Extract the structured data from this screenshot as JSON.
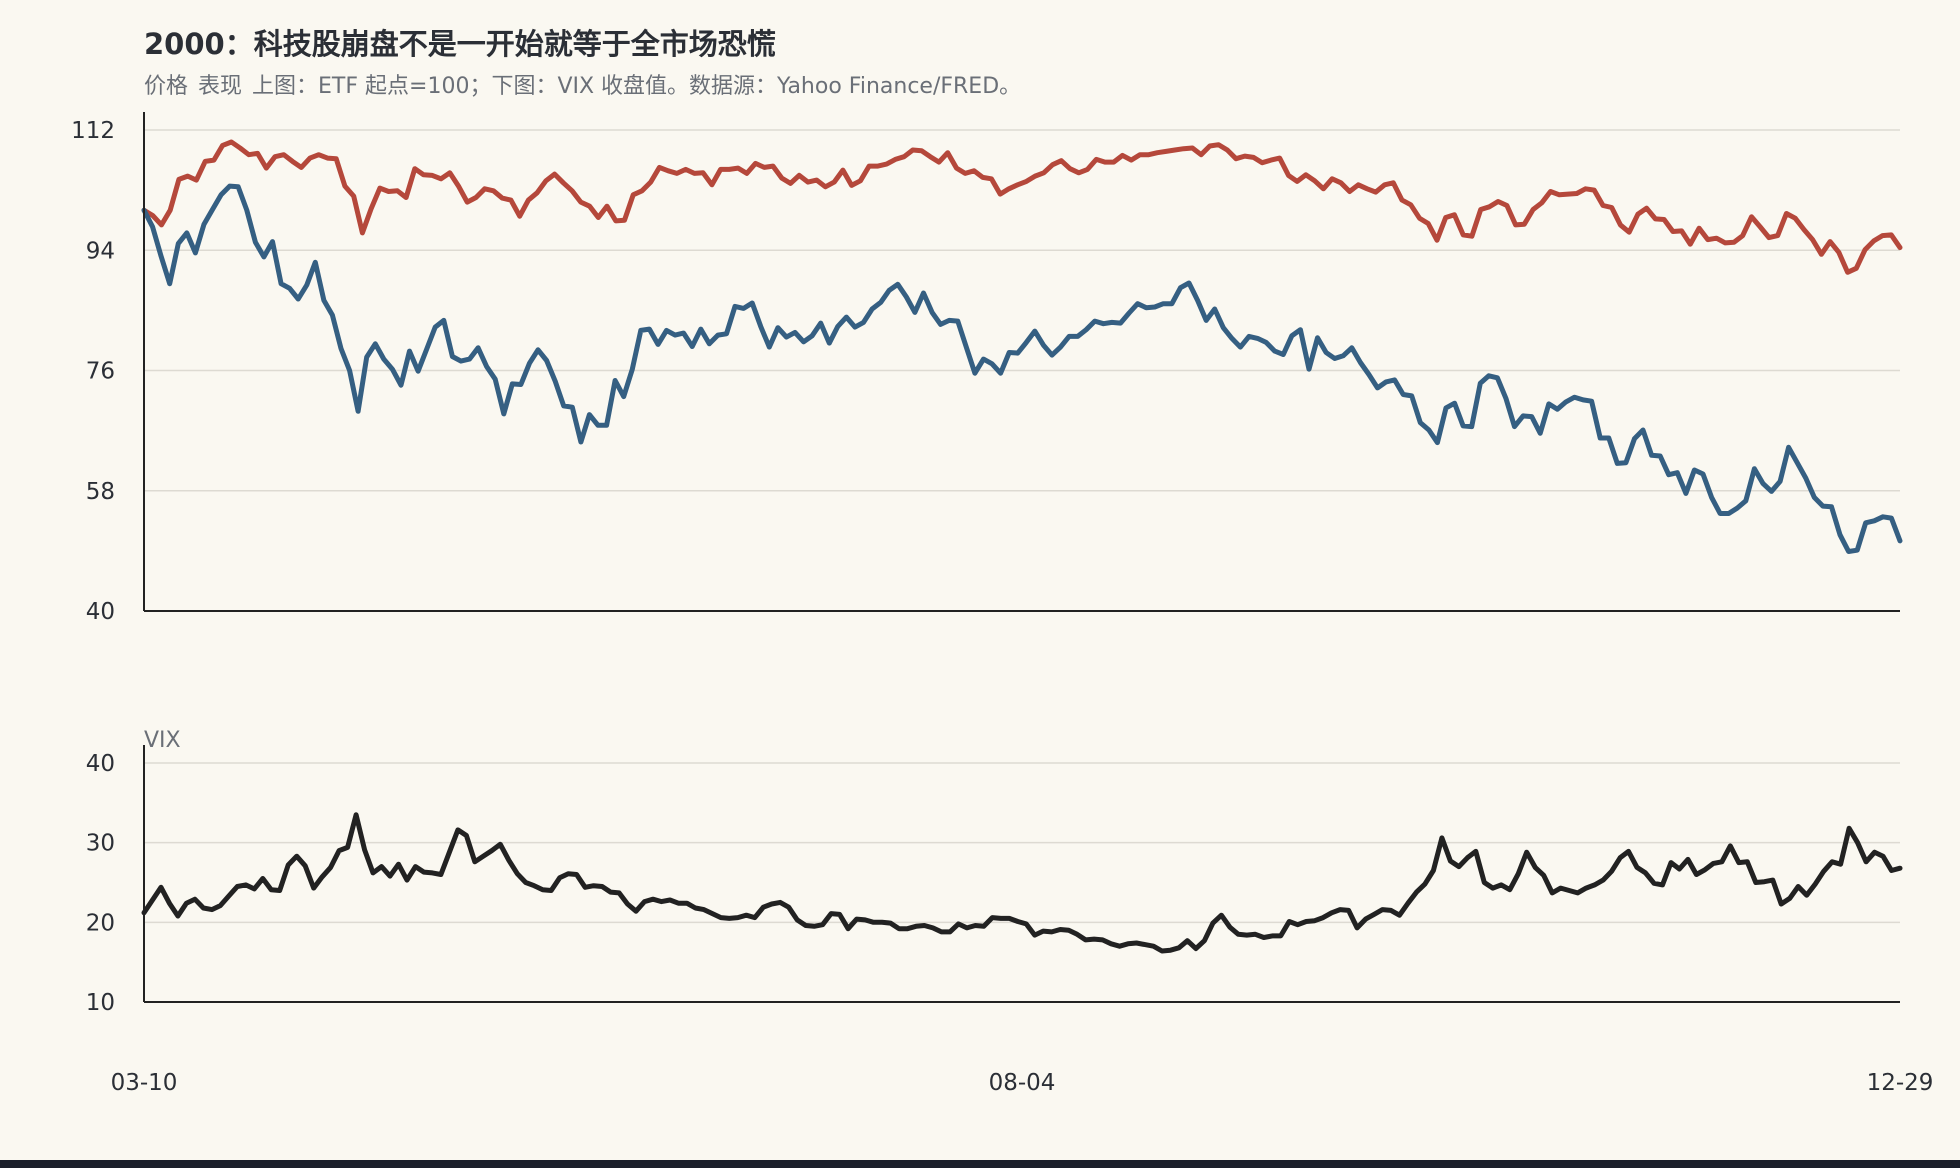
{
  "title": "2000：科技股崩盘不是一开始就等于全市场恐慌",
  "subtitle": "上图：ETF 起点=100；下图：VIX 收盘值。数据源：Yahoo Finance/FRED。",
  "legend_labels": [
    "价格",
    "表现"
  ],
  "colors": {
    "series_red": "#b5483b",
    "series_blue": "#355f82",
    "series_vix": "#222222",
    "grid": "#dddad2",
    "axis": "#222222"
  },
  "chart_data": [
    {
      "type": "line",
      "panel": "top",
      "ylim": [
        40,
        112
      ],
      "yticks": [
        "112",
        "94",
        "76",
        "58",
        "40"
      ],
      "xticks": [
        "03-10",
        "08-04",
        "12-29"
      ],
      "grid": true,
      "series": [
        {
          "color": "#b5483b",
          "values": [
            100,
            99.2,
            97.8,
            100,
            104.6,
            105.1,
            104.5,
            107.3,
            107.5,
            109.7,
            110.2,
            109.3,
            108.3,
            108.5,
            106.3,
            108,
            108.3,
            107.3,
            106.4,
            107.8,
            108.3,
            107.8,
            107.7,
            103.6,
            102.1,
            96.6,
            100.2,
            103.3,
            102.8,
            102.9,
            101.9,
            106.2,
            105.3,
            105.2,
            104.7,
            105.6,
            103.6,
            101.2,
            101.9,
            103.2,
            102.9,
            101.8,
            101.5,
            99.1,
            101.5,
            102.6,
            104.4,
            105.4,
            104.1,
            102.9,
            101.2,
            100.6,
            98.9,
            100.6,
            98.4,
            98.5,
            102.3,
            102.9,
            104.2,
            106.4,
            105.9,
            105.5,
            106.1,
            105.5,
            105.6,
            103.8,
            106.1,
            106.1,
            106.3,
            105.5,
            107,
            106.4,
            106.6,
            104.8,
            104,
            105.2,
            104.2,
            104.5,
            103.5,
            104.2,
            106,
            103.7,
            104.4,
            106.6,
            106.6,
            106.9,
            107.6,
            108,
            109,
            108.9,
            108,
            107.2,
            108.6,
            106.3,
            105.5,
            105.9,
            104.9,
            104.7,
            102.4,
            103.2,
            103.8,
            104.3,
            105.1,
            105.6,
            106.8,
            107.4,
            106.2,
            105.6,
            106.1,
            107.6,
            107.2,
            107.2,
            108.2,
            107.5,
            108.3,
            108.3,
            108.6,
            108.8,
            109,
            109.2,
            109.3,
            108.3,
            109.6,
            109.8,
            109,
            107.7,
            108.1,
            107.9,
            107.1,
            107.5,
            107.8,
            105.2,
            104.3,
            105.3,
            104.4,
            103.2,
            104.7,
            104.1,
            102.8,
            103.8,
            103.2,
            102.7,
            103.8,
            104.1,
            101.5,
            100.8,
            98.8,
            98,
            95.5,
            98.9,
            99.3,
            96.3,
            96.1,
            100.1,
            100.5,
            101.3,
            100.7,
            97.8,
            97.9,
            100.1,
            101.1,
            102.8,
            102.3,
            102.4,
            102.5,
            103.2,
            103,
            100.7,
            100.4,
            97.8,
            96.7,
            99.4,
            100.3,
            98.7,
            98.6,
            96.8,
            96.9,
            94.9,
            97.3,
            95.6,
            95.8,
            95.1,
            95.2,
            96.2,
            99,
            97.5,
            95.9,
            96.2,
            99.5,
            98.8,
            97.1,
            95.6,
            93.4,
            95.3,
            93.7,
            90.7,
            91.3,
            94.1,
            95.4,
            96.2,
            96.3,
            94.4
          ]
        },
        {
          "color": "#355f82",
          "values": [
            100,
            97.5,
            93.1,
            89,
            95,
            96.6,
            93.6,
            97.9,
            100.1,
            102.3,
            103.6,
            103.5,
            100,
            95.2,
            93,
            95.3,
            89,
            88.3,
            86.7,
            88.8,
            92.2,
            86.5,
            84.3,
            79.3,
            76,
            69.9,
            78,
            80,
            77.7,
            76.2,
            73.8,
            78.9,
            75.9,
            79.2,
            82.5,
            83.5,
            78.1,
            77.4,
            77.7,
            79.4,
            76.6,
            74.7,
            69.5,
            74,
            73.9,
            77.1,
            79.1,
            77.5,
            74.4,
            70.7,
            70.5,
            65.3,
            69.4,
            67.8,
            67.8,
            74.5,
            72.1,
            76.2,
            82,
            82.2,
            79.9,
            82,
            81.3,
            81.6,
            79.6,
            82.2,
            80,
            81.3,
            81.5,
            85.6,
            85.3,
            86.1,
            82.6,
            79.5,
            82.4,
            81,
            81.7,
            80.3,
            81.2,
            83.1,
            80.1,
            82.6,
            84,
            82.5,
            83.2,
            85.2,
            86.2,
            88,
            88.9,
            87,
            84.7,
            87.6,
            84.7,
            82.9,
            83.5,
            83.4,
            79.5,
            75.6,
            77.7,
            77,
            75.6,
            78.7,
            78.6,
            80.2,
            81.9,
            79.8,
            78.3,
            79.5,
            81.1,
            81.1,
            82.1,
            83.4,
            83,
            83.2,
            83.1,
            84.6,
            86,
            85.4,
            85.5,
            86,
            86,
            88.4,
            89.1,
            86.5,
            83.5,
            85.2,
            82.4,
            80.8,
            79.5,
            81.1,
            80.8,
            80.2,
            78.9,
            78.4,
            81.2,
            82.1,
            76.2,
            80.9,
            78.7,
            77.8,
            78.2,
            79.4,
            77.2,
            75.4,
            73.4,
            74.3,
            74.6,
            72.4,
            72.2,
            68.2,
            67.1,
            65.2,
            70.4,
            71.1,
            67.7,
            67.6,
            74.1,
            75.2,
            74.9,
            71.8,
            67.6,
            69.2,
            69.1,
            66.6,
            71,
            70.2,
            71.3,
            72,
            71.6,
            71.4,
            65.9,
            65.9,
            62.1,
            62.2,
            65.8,
            67.1,
            63.3,
            63.2,
            60.4,
            60.7,
            57.6,
            61.1,
            60.5,
            57,
            54.6,
            54.6,
            55.4,
            56.5,
            61.3,
            59.1,
            57.9,
            59.4,
            64.5,
            62.2,
            59.9,
            57,
            55.7,
            55.6,
            51.4,
            48.9,
            49.1,
            53.2,
            53.5,
            54.1,
            53.9,
            50.5
          ]
        }
      ]
    },
    {
      "type": "line",
      "panel": "bottom",
      "ylabel": "VIX",
      "ylim": [
        10,
        40
      ],
      "yticks": [
        "40",
        "30",
        "20",
        "10"
      ],
      "grid": true,
      "series": [
        {
          "color": "#222222",
          "values": [
            21.2,
            22.8,
            24.4,
            22.4,
            20.8,
            22.4,
            22.9,
            21.8,
            21.6,
            22.1,
            23.3,
            24.5,
            24.7,
            24.2,
            25.5,
            24.1,
            24,
            27.2,
            28.3,
            27.1,
            24.3,
            25.7,
            26.9,
            29,
            29.4,
            33.5,
            29.1,
            26.2,
            27,
            25.8,
            27.3,
            25.3,
            27,
            26.3,
            26.2,
            26,
            28.8,
            31.6,
            30.9,
            27.6,
            28.3,
            29,
            29.8,
            27.8,
            26.1,
            25,
            24.6,
            24.1,
            24,
            25.6,
            26.1,
            26,
            24.4,
            24.6,
            24.5,
            23.8,
            23.7,
            22.3,
            21.4,
            22.6,
            22.9,
            22.6,
            22.8,
            22.4,
            22.4,
            21.8,
            21.6,
            21.1,
            20.6,
            20.5,
            20.6,
            20.9,
            20.6,
            21.9,
            22.3,
            22.5,
            21.9,
            20.3,
            19.6,
            19.5,
            19.7,
            21.1,
            21,
            19.2,
            20.4,
            20.3,
            20,
            20,
            19.9,
            19.2,
            19.2,
            19.5,
            19.6,
            19.3,
            18.8,
            18.8,
            19.8,
            19.3,
            19.6,
            19.5,
            20.6,
            20.5,
            20.5,
            20.1,
            19.8,
            18.4,
            18.9,
            18.8,
            19.1,
            19,
            18.5,
            17.8,
            17.9,
            17.8,
            17.3,
            17,
            17.3,
            17.4,
            17.2,
            17,
            16.4,
            16.5,
            16.8,
            17.7,
            16.7,
            17.7,
            19.9,
            20.9,
            19.4,
            18.5,
            18.4,
            18.5,
            18.1,
            18.3,
            18.3,
            20.1,
            19.7,
            20.1,
            20.2,
            20.6,
            21.2,
            21.6,
            21.5,
            19.3,
            20.4,
            21,
            21.6,
            21.5,
            20.9,
            22.4,
            23.8,
            24.8,
            26.5,
            30.6,
            27.7,
            27,
            28.1,
            28.9,
            25,
            24.3,
            24.7,
            24.1,
            26.1,
            28.8,
            26.9,
            25.9,
            23.7,
            24.3,
            24,
            23.7,
            24.3,
            24.7,
            25.3,
            26.4,
            28.1,
            28.9,
            26.9,
            26.2,
            24.9,
            24.7,
            27.5,
            26.7,
            27.9,
            26,
            26.6,
            27.4,
            27.6,
            29.6,
            27.5,
            27.6,
            25,
            25.1,
            25.3,
            22.3,
            23,
            24.5,
            23.4,
            24.8,
            26.4,
            27.6,
            27.3,
            31.8,
            30,
            27.6,
            28.8,
            28.3,
            26.5,
            26.8
          ]
        }
      ]
    }
  ]
}
